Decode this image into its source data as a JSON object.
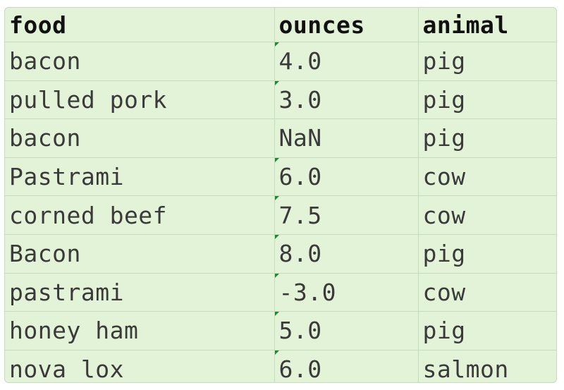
{
  "table": {
    "headers": [
      "food",
      "ounces",
      "animal"
    ],
    "rows": [
      {
        "food": "bacon",
        "ounces": "4.0",
        "animal": "pig",
        "flag": true
      },
      {
        "food": "pulled pork",
        "ounces": "3.0",
        "animal": "pig",
        "flag": true
      },
      {
        "food": "bacon",
        "ounces": "NaN",
        "animal": "pig",
        "flag": false
      },
      {
        "food": "Pastrami",
        "ounces": "6.0",
        "animal": "cow",
        "flag": true
      },
      {
        "food": "corned beef",
        "ounces": "7.5",
        "animal": "cow",
        "flag": true
      },
      {
        "food": "Bacon",
        "ounces": "8.0",
        "animal": "pig",
        "flag": true
      },
      {
        "food": "pastrami",
        "ounces": "-3.0",
        "animal": "cow",
        "flag": true
      },
      {
        "food": "honey ham",
        "ounces": "5.0",
        "animal": "pig",
        "flag": true
      },
      {
        "food": "nova lox",
        "ounces": "6.0",
        "animal": "salmon",
        "flag": true
      }
    ]
  },
  "colors": {
    "background": "#e3f3d8",
    "gridline": "#c5dcba",
    "number_flag": "#1a8a3a"
  }
}
